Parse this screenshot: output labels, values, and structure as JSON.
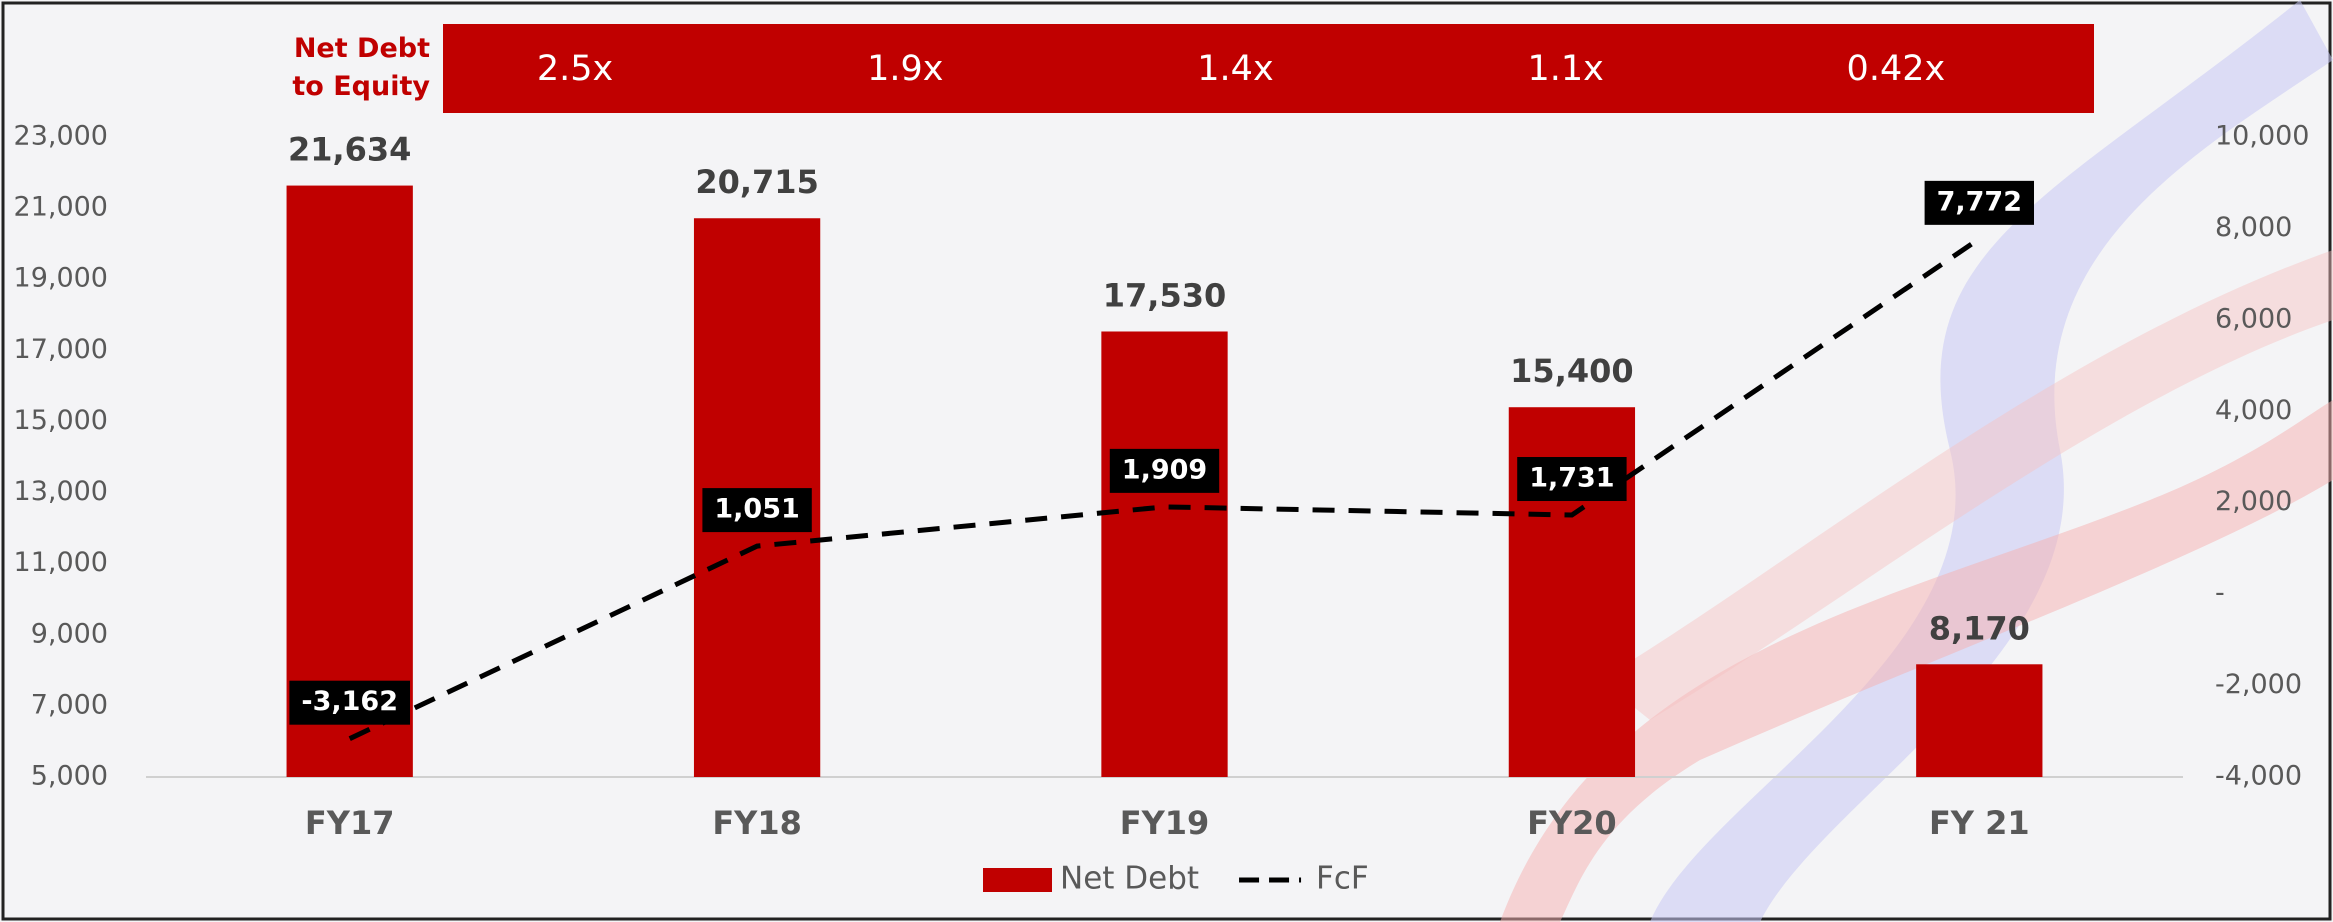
{
  "chart_data": {
    "type": "bar",
    "categories": [
      "FY17",
      "FY18",
      "FY19",
      "FY20",
      "FY 21"
    ],
    "series": [
      {
        "name": "Net Debt",
        "type": "bar",
        "color": "#c00000",
        "values": [
          21634,
          20715,
          17530,
          15400,
          8170
        ],
        "value_labels": [
          "21,634",
          "20,715",
          "17,530",
          "15,400",
          "8,170"
        ]
      },
      {
        "name": "FcF",
        "type": "line",
        "axis": "y2",
        "color": "#000000",
        "dashed": true,
        "values": [
          -3162,
          1051,
          1909,
          1731,
          7772
        ],
        "value_labels": [
          "-3,162",
          "1,051",
          "1,909",
          "1,731",
          "7,772"
        ]
      }
    ],
    "ylim": [
      5000,
      23000
    ],
    "yticks": [
      {
        "value": 5000,
        "label": "5,000"
      },
      {
        "value": 7000,
        "label": "7,000"
      },
      {
        "value": 9000,
        "label": "9,000"
      },
      {
        "value": 11000,
        "label": "11,000"
      },
      {
        "value": 13000,
        "label": "13,000"
      },
      {
        "value": 15000,
        "label": "15,000"
      },
      {
        "value": 17000,
        "label": "17,000"
      },
      {
        "value": 19000,
        "label": "19,000"
      },
      {
        "value": 21000,
        "label": "21,000"
      },
      {
        "value": 23000,
        "label": "23,000"
      }
    ],
    "y2lim": [
      -4000,
      10000
    ],
    "y2ticks": [
      {
        "value": -4000,
        "label": "-4,000"
      },
      {
        "value": -2000,
        "label": "-2,000"
      },
      {
        "value": 0,
        "label": "-"
      },
      {
        "value": 2000,
        "label": "2,000"
      },
      {
        "value": 4000,
        "label": "4,000"
      },
      {
        "value": 6000,
        "label": "6,000"
      },
      {
        "value": 8000,
        "label": "8,000"
      },
      {
        "value": 10000,
        "label": "10,000"
      }
    ],
    "ratio_row": {
      "label": "Net Debt to Equity",
      "color": "#c00000",
      "values": [
        2.5,
        1.9,
        1.4,
        1.1,
        0.42
      ],
      "value_labels": [
        "2.5x",
        "1.9x",
        "1.4x",
        "1.1x",
        "0.42x"
      ]
    },
    "legend": "bottom"
  }
}
